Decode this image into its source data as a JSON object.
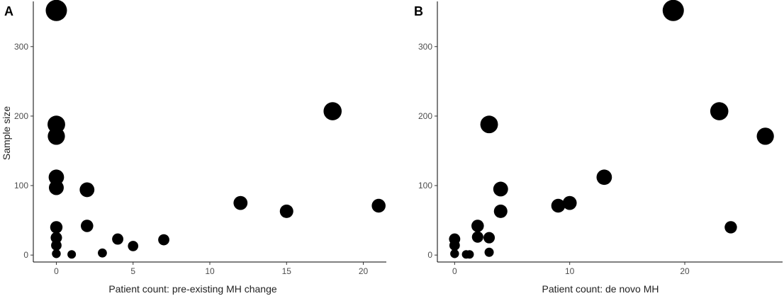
{
  "chart_data": [
    {
      "type": "scatter",
      "panel_label": "A",
      "xlabel": "Patient count: pre-existing MH change",
      "ylabel": "Sample size",
      "xlim": [
        -1.5,
        21.5
      ],
      "ylim": [
        -10,
        365
      ],
      "xticks": [
        0,
        5,
        10,
        15,
        20
      ],
      "yticks": [
        0,
        100,
        200,
        300
      ],
      "grid": false,
      "point_color": "#000000",
      "points": [
        {
          "x": 0,
          "y": 352
        },
        {
          "x": 0,
          "y": 188
        },
        {
          "x": 0,
          "y": 171
        },
        {
          "x": 0,
          "y": 112
        },
        {
          "x": 0,
          "y": 97
        },
        {
          "x": 0,
          "y": 40
        },
        {
          "x": 0,
          "y": 25
        },
        {
          "x": 0,
          "y": 14
        },
        {
          "x": 0,
          "y": 2
        },
        {
          "x": 1,
          "y": 1
        },
        {
          "x": 2,
          "y": 94
        },
        {
          "x": 2,
          "y": 42
        },
        {
          "x": 3,
          "y": 3
        },
        {
          "x": 4,
          "y": 23
        },
        {
          "x": 5,
          "y": 13
        },
        {
          "x": 7,
          "y": 22
        },
        {
          "x": 12,
          "y": 75
        },
        {
          "x": 15,
          "y": 63
        },
        {
          "x": 18,
          "y": 207
        },
        {
          "x": 21,
          "y": 71
        }
      ]
    },
    {
      "type": "scatter",
      "panel_label": "B",
      "xlabel": "Patient count: de novo MH",
      "ylabel": "",
      "xlim": [
        -1.5,
        28.5
      ],
      "ylim": [
        -10,
        365
      ],
      "xticks": [
        0,
        10,
        20
      ],
      "yticks": [
        0,
        100,
        200,
        300
      ],
      "grid": false,
      "point_color": "#000000",
      "points": [
        {
          "x": 0,
          "y": 23
        },
        {
          "x": 0,
          "y": 14
        },
        {
          "x": 0,
          "y": 2
        },
        {
          "x": 1,
          "y": 1
        },
        {
          "x": 1.3,
          "y": 1
        },
        {
          "x": 2,
          "y": 42
        },
        {
          "x": 2,
          "y": 26
        },
        {
          "x": 3,
          "y": 188
        },
        {
          "x": 3,
          "y": 25
        },
        {
          "x": 3,
          "y": 4
        },
        {
          "x": 4,
          "y": 95
        },
        {
          "x": 4,
          "y": 63
        },
        {
          "x": 9,
          "y": 71
        },
        {
          "x": 10,
          "y": 75
        },
        {
          "x": 13,
          "y": 112
        },
        {
          "x": 19,
          "y": 352
        },
        {
          "x": 23,
          "y": 207
        },
        {
          "x": 24,
          "y": 40
        },
        {
          "x": 27,
          "y": 171
        }
      ]
    }
  ]
}
